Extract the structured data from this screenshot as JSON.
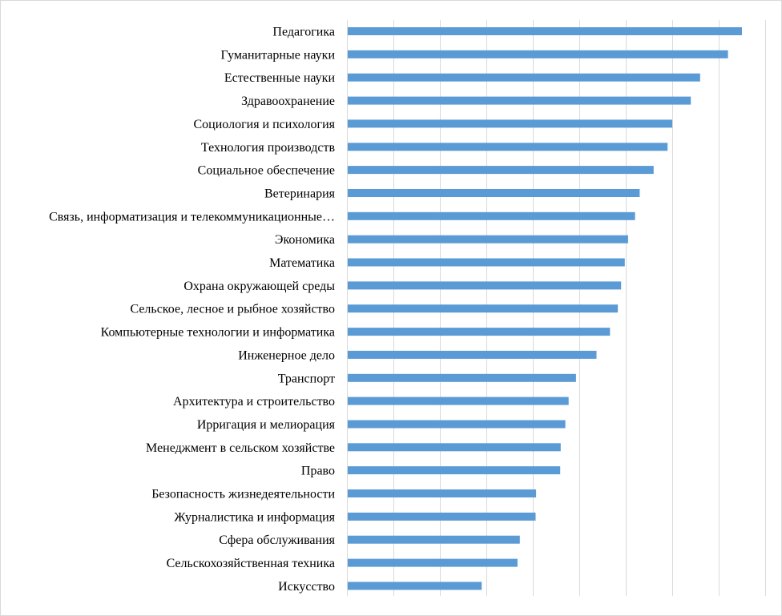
{
  "chart_data": {
    "type": "bar",
    "orientation": "horizontal",
    "title": "",
    "xlabel": "",
    "ylabel": "",
    "xlim": [
      0,
      9
    ],
    "grid": true,
    "legend": "none",
    "bar_color": "#5b9bd5",
    "grid_color": "#d9d9d9",
    "categories": [
      "Педагогика",
      "Гуманитарные науки",
      "Естественные науки",
      "Здравоохранение",
      "Социология и психология",
      "Технология производств",
      "Социальное обеспечение",
      "Ветеринария",
      "Связь, информатизация и телекоммуникационные…",
      "Экономика",
      "Математика",
      "Охрана окружающей среды",
      "Сельское, лесное и рыбное хозяйство",
      "Компьютерные технологии и информатика",
      "Инженерное дело",
      "Транспорт",
      "Архитектура и строительство",
      "Ирригация и мелиорация",
      "Менеджмент в сельском хозяйстве",
      "Право",
      "Безопасность жизнедеятельности",
      "Журналистика и информация",
      "Сфера обслуживания",
      "Сельскохозяйственная техника",
      "Искусство"
    ],
    "values": [
      8.5,
      8.2,
      7.6,
      7.4,
      7.0,
      6.9,
      6.6,
      6.3,
      6.2,
      6.05,
      5.98,
      5.9,
      5.83,
      5.66,
      5.37,
      4.93,
      4.77,
      4.7,
      4.6,
      4.59,
      4.07,
      4.06,
      3.72,
      3.67,
      2.9
    ]
  }
}
